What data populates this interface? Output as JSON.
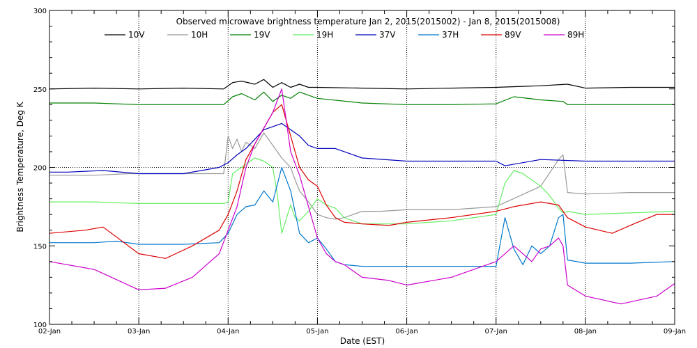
{
  "chart_data": {
    "type": "line",
    "title": "Observed microwave brightness temperature Jan  2, 2015(2015002) - Jan  8, 2015(2015008)",
    "xlabel": "Date (EST)",
    "ylabel": "Brightness Temperature, Deg K",
    "xlim": [
      0,
      7
    ],
    "ylim": [
      100,
      300
    ],
    "yticks": [
      100,
      150,
      200,
      250,
      300
    ],
    "x_unit": "days since 02-Jan 00:00 EST",
    "x_tick_positions": [
      0,
      1,
      2,
      3,
      4,
      5,
      6,
      7
    ],
    "x_tick_labels": [
      "02-Jan",
      "03-Jan",
      "04-Jan",
      "05-Jan",
      "06-Jan",
      "07-Jan",
      "08-Jan",
      "09-Jan"
    ],
    "grid": "dotted vertical at each day, dotted horizontal at 200",
    "legend_position": "top",
    "series": [
      {
        "name": "10V",
        "color": "#000000",
        "x": [
          0,
          0.5,
          1,
          1.5,
          1.95,
          2.05,
          2.15,
          2.3,
          2.4,
          2.5,
          2.6,
          2.7,
          2.8,
          2.9,
          3.0,
          3.5,
          4,
          4.5,
          5,
          5.5,
          5.8,
          6,
          6.5,
          7
        ],
        "y": [
          250,
          250.5,
          250,
          250.5,
          250,
          254,
          255,
          253,
          256,
          251,
          254,
          251,
          253,
          251,
          251,
          250.5,
          250,
          250.5,
          251,
          252,
          253,
          250.5,
          251,
          251
        ]
      },
      {
        "name": "10H",
        "color": "#999999",
        "x": [
          0,
          0.5,
          0.9,
          1,
          1.5,
          1.95,
          2.0,
          2.05,
          2.1,
          2.15,
          2.2,
          2.3,
          2.4,
          2.5,
          2.6,
          2.7,
          2.75,
          2.8,
          2.9,
          3.0,
          3.1,
          3.2,
          3.3,
          3.5,
          3.7,
          4,
          4.5,
          5,
          5.5,
          5.7,
          5.75,
          5.8,
          6,
          6.5,
          7
        ],
        "y": [
          195,
          195,
          196,
          196,
          196,
          196,
          220,
          212,
          218,
          210,
          216,
          212,
          222,
          214,
          206,
          200,
          192,
          185,
          178,
          170,
          168,
          167,
          168,
          172,
          172,
          173,
          173,
          175,
          188,
          205,
          208,
          184,
          183,
          184,
          184
        ]
      },
      {
        "name": "19V",
        "color": "#008000",
        "x": [
          0,
          0.5,
          1,
          1.5,
          1.95,
          2.05,
          2.15,
          2.3,
          2.4,
          2.5,
          2.6,
          2.7,
          2.8,
          3.0,
          3.5,
          4,
          4.5,
          5,
          5.2,
          5.5,
          5.75,
          5.8,
          6,
          6.5,
          7
        ],
        "y": [
          241,
          241,
          240,
          240,
          240,
          245,
          247,
          243,
          248,
          242,
          246,
          244,
          248,
          244,
          241,
          240,
          240,
          240.5,
          245,
          243,
          242,
          240,
          240,
          240,
          240
        ]
      },
      {
        "name": "19H",
        "color": "#66ee66",
        "x": [
          0,
          0.5,
          1,
          1.5,
          1.95,
          2.0,
          2.05,
          2.1,
          2.2,
          2.3,
          2.4,
          2.5,
          2.55,
          2.6,
          2.7,
          2.75,
          2.8,
          2.9,
          3.0,
          3.1,
          3.2,
          3.3,
          3.5,
          4,
          4.5,
          5,
          5.1,
          5.2,
          5.3,
          5.5,
          5.6,
          5.7,
          5.75,
          5.8,
          6,
          6.5,
          7
        ],
        "y": [
          178,
          178,
          177,
          177,
          177,
          178,
          196,
          198,
          202,
          206,
          204,
          200,
          183,
          158,
          176,
          168,
          166,
          172,
          180,
          176,
          174,
          168,
          164,
          164,
          166,
          170,
          190,
          198,
          196,
          188,
          182,
          174,
          171,
          172,
          170,
          171,
          172
        ]
      },
      {
        "name": "37V",
        "color": "#0000bb",
        "x": [
          0,
          0.2,
          0.6,
          1,
          1.5,
          1.9,
          2.0,
          2.1,
          2.2,
          2.3,
          2.4,
          2.5,
          2.6,
          2.7,
          2.8,
          2.9,
          3.0,
          3.2,
          3.5,
          4,
          4.5,
          5,
          5.1,
          5.5,
          6,
          6.5,
          7
        ],
        "y": [
          197,
          197,
          198,
          196,
          196,
          200,
          203,
          208,
          212,
          218,
          224,
          226,
          228,
          224,
          220,
          214,
          212,
          212,
          206,
          204,
          204,
          204,
          201,
          205,
          204,
          204,
          204
        ]
      },
      {
        "name": "37H",
        "color": "#0077cc",
        "x": [
          0,
          0.5,
          0.75,
          1,
          1.5,
          1.9,
          2.0,
          2.1,
          2.2,
          2.3,
          2.4,
          2.5,
          2.6,
          2.7,
          2.8,
          2.9,
          3.0,
          3.1,
          3.2,
          3.3,
          3.5,
          4,
          4.5,
          5,
          5.1,
          5.2,
          5.3,
          5.4,
          5.5,
          5.6,
          5.7,
          5.75,
          5.8,
          6,
          6.5,
          7
        ],
        "y": [
          152,
          152,
          153,
          151,
          151,
          152,
          158,
          170,
          175,
          176,
          185,
          178,
          200,
          185,
          158,
          152,
          155,
          148,
          140,
          138,
          137,
          137,
          137,
          137,
          168,
          148,
          138,
          150,
          145,
          150,
          168,
          170,
          141,
          139,
          139,
          140
        ]
      },
      {
        "name": "89V",
        "color": "#dd0000",
        "x": [
          0,
          0.4,
          0.6,
          1,
          1.3,
          1.6,
          1.9,
          2.0,
          2.1,
          2.2,
          2.3,
          2.4,
          2.5,
          2.6,
          2.7,
          2.8,
          2.9,
          3.0,
          3.1,
          3.2,
          3.3,
          3.5,
          3.8,
          4,
          4.5,
          5,
          5.2,
          5.5,
          5.7,
          5.75,
          5.8,
          6,
          6.3,
          6.5,
          6.8,
          7
        ],
        "y": [
          158,
          160,
          162,
          145,
          142,
          150,
          160,
          170,
          185,
          205,
          215,
          225,
          235,
          240,
          220,
          200,
          192,
          188,
          176,
          168,
          165,
          164,
          163,
          165,
          168,
          172,
          175,
          178,
          176,
          172,
          168,
          162,
          158,
          163,
          170,
          170
        ]
      },
      {
        "name": "89H",
        "color": "#cc00cc",
        "x": [
          0,
          0.5,
          1,
          1.3,
          1.6,
          1.9,
          2.0,
          2.1,
          2.2,
          2.3,
          2.4,
          2.5,
          2.6,
          2.7,
          2.8,
          2.9,
          3.0,
          3.1,
          3.2,
          3.3,
          3.5,
          3.8,
          4,
          4.5,
          5,
          5.2,
          5.4,
          5.5,
          5.6,
          5.7,
          5.75,
          5.8,
          6,
          6.4,
          6.8,
          7
        ],
        "y": [
          140,
          135,
          122,
          123,
          130,
          145,
          160,
          175,
          200,
          215,
          225,
          235,
          250,
          210,
          195,
          175,
          155,
          145,
          140,
          138,
          130,
          128,
          125,
          130,
          140,
          150,
          140,
          148,
          150,
          155,
          150,
          125,
          118,
          113,
          118,
          126
        ]
      }
    ]
  }
}
